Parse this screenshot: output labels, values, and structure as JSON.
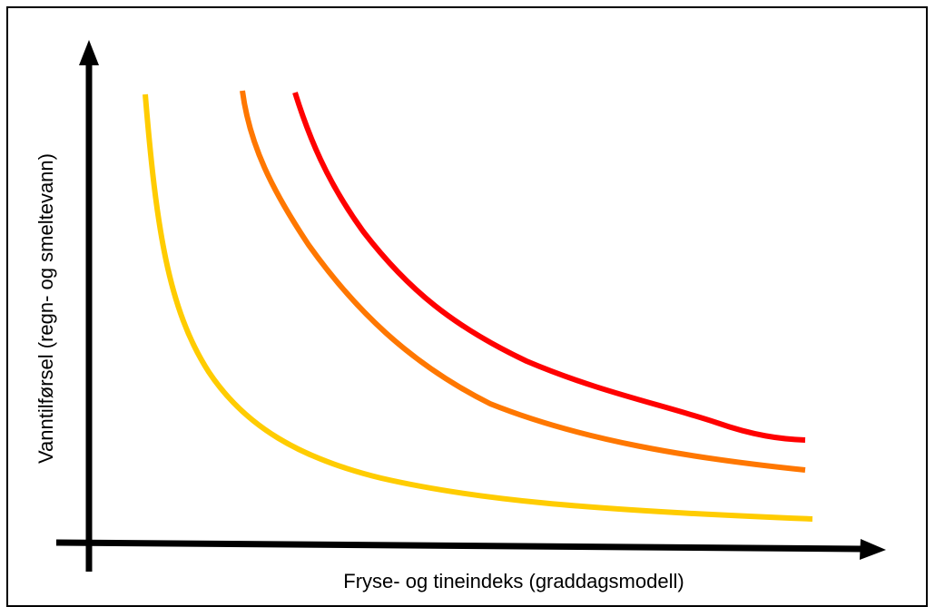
{
  "axes": {
    "x_label": "Fryse- og tineindeks (graddagsmodell)",
    "y_label": "Vanntilførsel (regn- og smeltevann)"
  }
}
